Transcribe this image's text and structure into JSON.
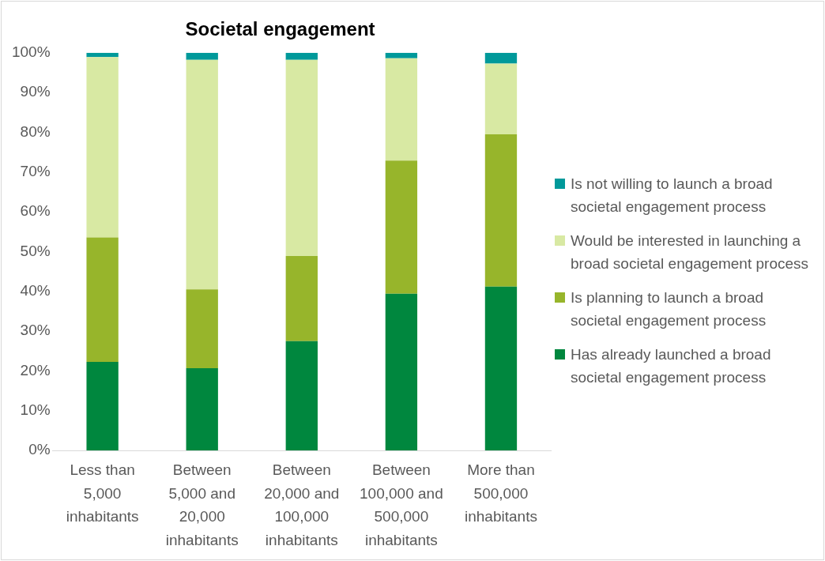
{
  "chart_data": {
    "type": "bar",
    "title": "Societal engagement",
    "stacked": true,
    "legend": "right",
    "categories": [
      "Less than 5,000 inhabitants",
      "Between 5,000 and 20,000 inhabitants",
      "Between 20,000 and 100,000 inhabitants",
      "Between 100,000 and 500,000 inhabitants",
      "More than 500,000 inhabitants"
    ],
    "series": [
      {
        "name": "Has already launched a broad societal engagement process",
        "color": "#00873e",
        "values": [
          22.3,
          20.7,
          27.5,
          39.4,
          41.2
        ]
      },
      {
        "name": "Is planning to launch a broad societal engagement process",
        "color": "#97b52b",
        "values": [
          31.3,
          19.8,
          21.4,
          33.5,
          38.3
        ]
      },
      {
        "name": "Would be interested in launching a broad societal engagement process",
        "color": "#d8e9a3",
        "values": [
          45.3,
          57.7,
          49.3,
          25.7,
          17.8
        ]
      },
      {
        "name": "Is not willing to launch a broad societal engagement process",
        "color": "#00999a",
        "values": [
          1.1,
          1.8,
          1.8,
          1.4,
          2.7
        ]
      }
    ],
    "ylim": [
      0,
      100
    ],
    "yticks": [
      {
        "value": 0,
        "label": "0%"
      },
      {
        "value": 10,
        "label": "10%"
      },
      {
        "value": 20,
        "label": "20%"
      },
      {
        "value": 30,
        "label": "30%"
      },
      {
        "value": 40,
        "label": "40%"
      },
      {
        "value": 50,
        "label": "50%"
      },
      {
        "value": 60,
        "label": "60%"
      },
      {
        "value": 70,
        "label": "70%"
      },
      {
        "value": 80,
        "label": "80%"
      },
      {
        "value": 90,
        "label": "90%"
      },
      {
        "value": 100,
        "label": "100%"
      }
    ],
    "grid": false
  }
}
